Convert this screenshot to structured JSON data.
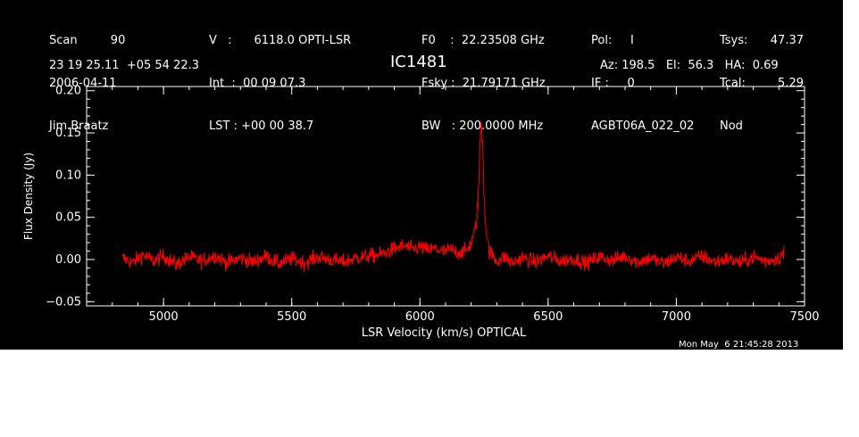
{
  "header": {
    "col1": [
      "Scan         90",
      "2006-04-11",
      "Jim Braatz"
    ],
    "col2": [
      "V   :      6118.0 OPTI-LSR",
      "Int  :  00 09 07.3",
      "LST : +00 00 38.7"
    ],
    "col3": [
      "F0    :  22.23508 GHz",
      "Fsky :  21.79171 GHz",
      "BW   : 200.0000 MHz"
    ],
    "col4": [
      "Pol:     I",
      "IF :     0",
      "AGBT06A_022_02"
    ],
    "col5a": [
      "Tsys:",
      "Tcal:",
      "Nod"
    ],
    "col5b": [
      "47.37",
      "5.29"
    ],
    "coords": "23 19 25.11  +05 54 22.3",
    "source": "IC1481",
    "azel": "Az: 198.5   El:  56.3   HA:  0.69"
  },
  "footer_timestamp": "Mon May  6 21:45:28 2013",
  "colors": {
    "background": "#000000",
    "axes": "#ffffff",
    "series": "#ff0000"
  },
  "chart_data": {
    "type": "line",
    "title": "IC1481",
    "xlabel": "LSR Velocity (km/s) OPTICAL",
    "ylabel": "Flux Density (Jy)",
    "xlim": [
      4700,
      7500
    ],
    "ylim": [
      -0.055,
      0.205
    ],
    "xticks": [
      5000,
      5500,
      6000,
      6500,
      7000,
      7500
    ],
    "xtick_labels": [
      "5000",
      "5500",
      "6000",
      "6500",
      "7000",
      "7500"
    ],
    "yticks": [
      -0.05,
      0.0,
      0.05,
      0.1,
      0.15,
      0.2
    ],
    "ytick_labels": [
      "−0.05",
      "0.00",
      "0.05",
      "0.10",
      "0.15",
      "0.20"
    ],
    "grid": false,
    "series": [
      {
        "x": [
          4840,
          4880,
          4920,
          4960,
          5000,
          5050,
          5100,
          5150,
          5200,
          5250,
          5300,
          5350,
          5400,
          5450,
          5500,
          5550,
          5600,
          5650,
          5700,
          5750,
          5800,
          5850,
          5880,
          5910,
          5940,
          5970,
          6000,
          6030,
          6060,
          6090,
          6120,
          6150,
          6180,
          6200,
          6215,
          6225,
          6232,
          6238,
          6242,
          6246,
          6250,
          6256,
          6262,
          6270,
          6285,
          6300,
          6330,
          6360,
          6400,
          6450,
          6500,
          6550,
          6600,
          6650,
          6700,
          6750,
          6800,
          6850,
          6900,
          6950,
          7000,
          7050,
          7100,
          7150,
          7200,
          7250,
          7300,
          7350,
          7400,
          7420
        ],
        "y": [
          0.002,
          -0.004,
          0.006,
          -0.002,
          0.004,
          -0.006,
          0.003,
          -0.002,
          0.005,
          -0.004,
          0.002,
          -0.003,
          0.004,
          -0.005,
          0.001,
          -0.004,
          0.003,
          0.0,
          -0.003,
          0.002,
          0.004,
          0.006,
          0.01,
          0.014,
          0.016,
          0.012,
          0.015,
          0.011,
          0.013,
          0.009,
          0.012,
          0.008,
          0.01,
          0.02,
          0.035,
          0.06,
          0.11,
          0.168,
          0.15,
          0.13,
          0.08,
          0.045,
          0.025,
          0.01,
          0.004,
          -0.002,
          0.003,
          -0.004,
          0.002,
          -0.003,
          0.004,
          -0.002,
          0.001,
          -0.004,
          0.003,
          -0.001,
          0.004,
          -0.003,
          0.002,
          -0.005,
          0.003,
          -0.002,
          0.004,
          -0.003,
          0.001,
          -0.004,
          0.003,
          -0.002,
          0.002,
          0.008
        ]
      }
    ]
  }
}
